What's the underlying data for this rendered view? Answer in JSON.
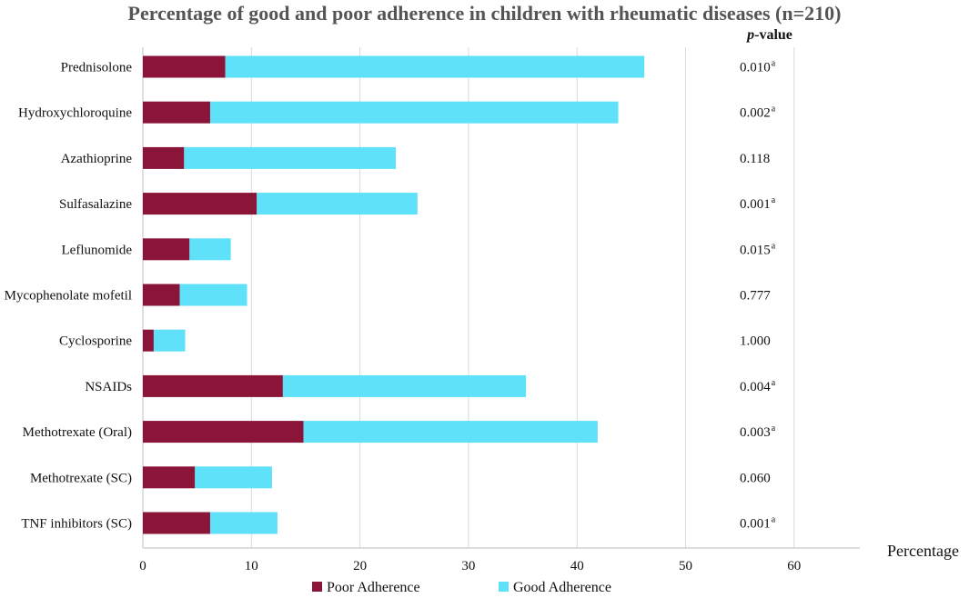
{
  "chart_data": {
    "type": "bar",
    "orientation": "horizontal",
    "stacked": true,
    "title": "Percentage of good and poor adherence in children with rheumatic diseases (n=210)",
    "xlabel": "Percentage",
    "ylabel": "",
    "xlim": [
      0,
      66
    ],
    "xticks": [
      0,
      10,
      20,
      30,
      40,
      50,
      60
    ],
    "grid": true,
    "legend_position": "bottom",
    "categories": [
      "Prednisolone",
      "Hydroxychloroquine",
      "Azathioprine",
      "Sulfasalazine",
      "Leflunomide",
      "Mycophenolate mofetil",
      "Cyclosporine",
      "NSAIDs",
      "Methotrexate (Oral)",
      "Methotrexate (SC)",
      "TNF inhibitors (SC)"
    ],
    "series": [
      {
        "name": "Poor Adherence",
        "color": "#8b1538",
        "values": [
          7.6,
          6.2,
          3.8,
          10.5,
          4.3,
          3.4,
          1.0,
          12.9,
          14.8,
          4.8,
          6.2
        ]
      },
      {
        "name": "Good Adherence",
        "color": "#5ee1f9",
        "values": [
          38.6,
          37.6,
          19.5,
          14.8,
          3.8,
          6.2,
          2.9,
          22.4,
          27.1,
          7.1,
          6.2
        ]
      }
    ],
    "pvalue_header": {
      "italic": "p",
      "rest": "-value"
    },
    "pvalues": [
      {
        "value": "0.010",
        "sup": "a"
      },
      {
        "value": "0.002",
        "sup": "a"
      },
      {
        "value": "0.118",
        "sup": ""
      },
      {
        "value": "0.001",
        "sup": "a"
      },
      {
        "value": "0.015",
        "sup": "a"
      },
      {
        "value": "0.777",
        "sup": ""
      },
      {
        "value": "1.000",
        "sup": ""
      },
      {
        "value": "0.004",
        "sup": "a"
      },
      {
        "value": "0.003",
        "sup": "a"
      },
      {
        "value": "0.060",
        "sup": ""
      },
      {
        "value": "0.001",
        "sup": "a"
      }
    ]
  }
}
